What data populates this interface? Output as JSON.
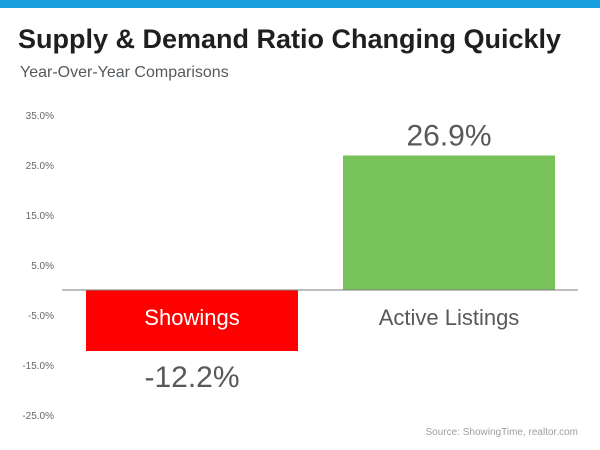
{
  "title": "Supply & Demand Ratio Changing Quickly",
  "subtitle": "Year-Over-Year Comparisons",
  "source": "Source: ShowingTime, realtor.com",
  "colors": {
    "accent_bar": "#1a9fe0",
    "showings": "#ff0000",
    "active_listings": "#77c35a"
  },
  "chart_data": {
    "type": "bar",
    "categories": [
      "Showings",
      "Active Listings"
    ],
    "values": [
      -12.2,
      26.9
    ],
    "data_labels": [
      "-12.2%",
      "26.9%"
    ],
    "bar_colors": [
      "#ff0000",
      "#77c35a"
    ],
    "ylim": [
      -25,
      35
    ],
    "yticks": [
      35,
      25,
      15,
      5,
      -5,
      -15,
      -25
    ],
    "ytick_labels": [
      "35.0%",
      "25.0%",
      "15.0%",
      "5.0%",
      "-5.0%",
      "-15.0%",
      "-25.0%"
    ],
    "grid": false
  }
}
